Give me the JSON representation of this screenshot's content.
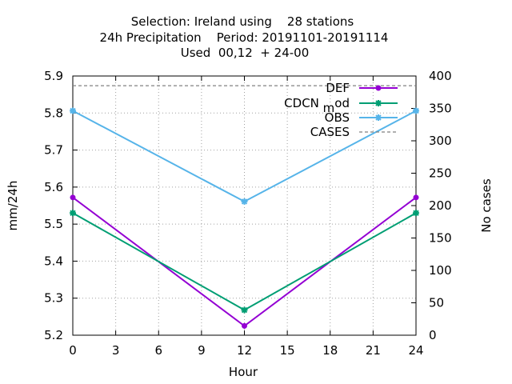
{
  "chart_data": {
    "type": "line",
    "title_lines": [
      "Selection: Ireland using    28 stations",
      "24h Precipitation    Period: 20191101-20191114",
      "Used  00,12  + 24-00"
    ],
    "xlabel": "Hour",
    "ylabel": "mm/24h",
    "y2label": "No cases",
    "x": [
      0,
      12,
      24
    ],
    "xlim": [
      0,
      24
    ],
    "xticks": [
      0,
      3,
      6,
      9,
      12,
      15,
      18,
      21,
      24
    ],
    "ylim": [
      5.2,
      5.9
    ],
    "yticks": [
      "5.2",
      "5.3",
      "5.4",
      "5.5",
      "5.6",
      "5.7",
      "5.8",
      "5.9"
    ],
    "y2lim": [
      0,
      400
    ],
    "y2ticks": [
      0,
      50,
      100,
      150,
      200,
      250,
      300,
      350,
      400
    ],
    "grid": true,
    "legend_position": "top-right",
    "series": [
      {
        "name": "DEF",
        "axis": "y",
        "color": "#9400d3",
        "marker": "circle",
        "dash": "solid",
        "values": [
          5.572,
          5.225,
          5.572
        ]
      },
      {
        "name": "CDCN_mod",
        "label_base": "CDCN ",
        "label_sub": "m",
        "label_tail": "od",
        "axis": "y",
        "color": "#009e73",
        "marker": "star",
        "dash": "solid",
        "values": [
          5.53,
          5.268,
          5.53
        ]
      },
      {
        "name": "OBS",
        "axis": "y",
        "color": "#56b4e9",
        "marker": "star",
        "dash": "solid",
        "values": [
          5.806,
          5.561,
          5.806
        ]
      },
      {
        "name": "CASES",
        "axis": "y2",
        "color": "#808080",
        "marker": "none",
        "dash": "dashed",
        "values": [
          385,
          385,
          385
        ]
      }
    ]
  }
}
